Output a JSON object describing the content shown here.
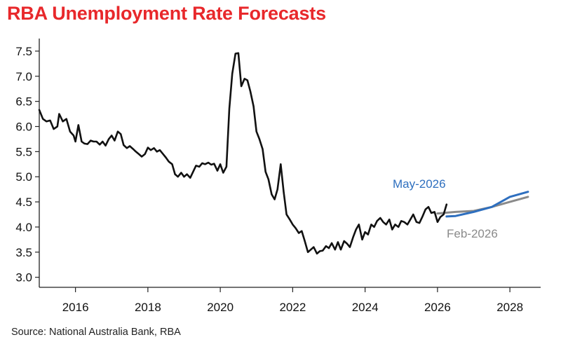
{
  "chart_data": {
    "type": "line",
    "title": "RBA Unemployment Rate Forecasts",
    "source": "Source: National Australia Bank, RBA",
    "xlabel": "",
    "ylabel": "",
    "xlim": [
      2015.0,
      2028.85
    ],
    "ylim": [
      2.8,
      7.75
    ],
    "x_ticks": [
      2016,
      2018,
      2020,
      2022,
      2024,
      2026,
      2028
    ],
    "x_tick_labels": [
      "2016",
      "2018",
      "2020",
      "2022",
      "2024",
      "2026",
      "2028"
    ],
    "y_ticks": [
      3.0,
      3.5,
      4.0,
      4.5,
      5.0,
      5.5,
      6.0,
      6.5,
      7.0,
      7.5
    ],
    "y_tick_labels": [
      "3.0",
      "3.5",
      "4.0",
      "4.5",
      "5.0",
      "5.5",
      "6.0",
      "6.5",
      "7.0",
      "7.5"
    ],
    "grid": false,
    "legend": "inline labels",
    "series": [
      {
        "name": "",
        "color": "#111111",
        "points": [
          [
            2015.0,
            6.33
          ],
          [
            2015.1,
            6.15
          ],
          [
            2015.2,
            6.1
          ],
          [
            2015.3,
            6.12
          ],
          [
            2015.4,
            5.95
          ],
          [
            2015.5,
            6.0
          ],
          [
            2015.55,
            6.25
          ],
          [
            2015.65,
            6.1
          ],
          [
            2015.75,
            6.15
          ],
          [
            2015.85,
            5.9
          ],
          [
            2015.95,
            5.82
          ],
          [
            2016.0,
            5.7
          ],
          [
            2016.08,
            6.03
          ],
          [
            2016.17,
            5.7
          ],
          [
            2016.25,
            5.66
          ],
          [
            2016.33,
            5.65
          ],
          [
            2016.42,
            5.72
          ],
          [
            2016.5,
            5.7
          ],
          [
            2016.58,
            5.7
          ],
          [
            2016.67,
            5.64
          ],
          [
            2016.75,
            5.7
          ],
          [
            2016.83,
            5.62
          ],
          [
            2016.92,
            5.75
          ],
          [
            2017.0,
            5.82
          ],
          [
            2017.08,
            5.72
          ],
          [
            2017.17,
            5.9
          ],
          [
            2017.25,
            5.85
          ],
          [
            2017.33,
            5.63
          ],
          [
            2017.42,
            5.57
          ],
          [
            2017.5,
            5.61
          ],
          [
            2017.58,
            5.56
          ],
          [
            2017.67,
            5.5
          ],
          [
            2017.75,
            5.45
          ],
          [
            2017.83,
            5.4
          ],
          [
            2017.92,
            5.45
          ],
          [
            2018.0,
            5.58
          ],
          [
            2018.08,
            5.53
          ],
          [
            2018.17,
            5.57
          ],
          [
            2018.25,
            5.5
          ],
          [
            2018.33,
            5.53
          ],
          [
            2018.42,
            5.45
          ],
          [
            2018.5,
            5.38
          ],
          [
            2018.58,
            5.3
          ],
          [
            2018.67,
            5.25
          ],
          [
            2018.75,
            5.05
          ],
          [
            2018.83,
            5.0
          ],
          [
            2018.92,
            5.08
          ],
          [
            2019.0,
            5.0
          ],
          [
            2019.08,
            5.05
          ],
          [
            2019.17,
            4.98
          ],
          [
            2019.25,
            5.1
          ],
          [
            2019.33,
            5.22
          ],
          [
            2019.42,
            5.2
          ],
          [
            2019.5,
            5.27
          ],
          [
            2019.58,
            5.25
          ],
          [
            2019.67,
            5.28
          ],
          [
            2019.75,
            5.24
          ],
          [
            2019.83,
            5.26
          ],
          [
            2019.92,
            5.12
          ],
          [
            2020.0,
            5.25
          ],
          [
            2020.08,
            5.08
          ],
          [
            2020.17,
            5.2
          ],
          [
            2020.25,
            6.35
          ],
          [
            2020.33,
            7.05
          ],
          [
            2020.42,
            7.45
          ],
          [
            2020.5,
            7.46
          ],
          [
            2020.58,
            6.8
          ],
          [
            2020.67,
            6.95
          ],
          [
            2020.75,
            6.92
          ],
          [
            2020.83,
            6.7
          ],
          [
            2020.92,
            6.4
          ],
          [
            2021.0,
            5.9
          ],
          [
            2021.08,
            5.75
          ],
          [
            2021.17,
            5.55
          ],
          [
            2021.25,
            5.1
          ],
          [
            2021.33,
            4.95
          ],
          [
            2021.42,
            4.65
          ],
          [
            2021.5,
            4.55
          ],
          [
            2021.58,
            4.75
          ],
          [
            2021.67,
            5.25
          ],
          [
            2021.75,
            4.7
          ],
          [
            2021.83,
            4.25
          ],
          [
            2021.92,
            4.15
          ],
          [
            2022.0,
            4.05
          ],
          [
            2022.08,
            3.98
          ],
          [
            2022.17,
            3.88
          ],
          [
            2022.25,
            3.92
          ],
          [
            2022.33,
            3.73
          ],
          [
            2022.42,
            3.5
          ],
          [
            2022.5,
            3.55
          ],
          [
            2022.58,
            3.6
          ],
          [
            2022.67,
            3.47
          ],
          [
            2022.75,
            3.52
          ],
          [
            2022.83,
            3.53
          ],
          [
            2022.92,
            3.62
          ],
          [
            2023.0,
            3.58
          ],
          [
            2023.08,
            3.68
          ],
          [
            2023.17,
            3.55
          ],
          [
            2023.25,
            3.7
          ],
          [
            2023.33,
            3.55
          ],
          [
            2023.42,
            3.72
          ],
          [
            2023.5,
            3.67
          ],
          [
            2023.58,
            3.6
          ],
          [
            2023.67,
            3.8
          ],
          [
            2023.75,
            3.95
          ],
          [
            2023.83,
            4.05
          ],
          [
            2023.92,
            3.75
          ],
          [
            2024.0,
            3.9
          ],
          [
            2024.08,
            3.85
          ],
          [
            2024.17,
            4.05
          ],
          [
            2024.25,
            4.0
          ],
          [
            2024.33,
            4.12
          ],
          [
            2024.42,
            4.18
          ],
          [
            2024.5,
            4.1
          ],
          [
            2024.58,
            4.05
          ],
          [
            2024.67,
            4.15
          ],
          [
            2024.75,
            3.95
          ],
          [
            2024.83,
            4.05
          ],
          [
            2024.92,
            4.0
          ],
          [
            2025.0,
            4.12
          ],
          [
            2025.08,
            4.1
          ],
          [
            2025.17,
            4.05
          ],
          [
            2025.25,
            4.15
          ],
          [
            2025.33,
            4.25
          ],
          [
            2025.42,
            4.1
          ],
          [
            2025.5,
            4.08
          ],
          [
            2025.58,
            4.2
          ],
          [
            2025.67,
            4.35
          ],
          [
            2025.75,
            4.4
          ],
          [
            2025.83,
            4.28
          ],
          [
            2025.92,
            4.3
          ],
          [
            2026.0,
            4.1
          ],
          [
            2026.08,
            4.2
          ],
          [
            2026.17,
            4.25
          ],
          [
            2026.25,
            4.45
          ]
        ]
      },
      {
        "name": "Feb-2026",
        "color": "#8a8a8a",
        "points": [
          [
            2026.0,
            4.27
          ],
          [
            2026.5,
            4.3
          ],
          [
            2027.0,
            4.32
          ],
          [
            2027.5,
            4.4
          ],
          [
            2028.0,
            4.5
          ],
          [
            2028.5,
            4.6
          ]
        ]
      },
      {
        "name": "May-2026",
        "color": "#2e6fbf",
        "points": [
          [
            2026.25,
            4.21
          ],
          [
            2026.5,
            4.22
          ],
          [
            2027.0,
            4.3
          ],
          [
            2027.5,
            4.4
          ],
          [
            2028.0,
            4.6
          ],
          [
            2028.5,
            4.7
          ]
        ]
      }
    ]
  }
}
